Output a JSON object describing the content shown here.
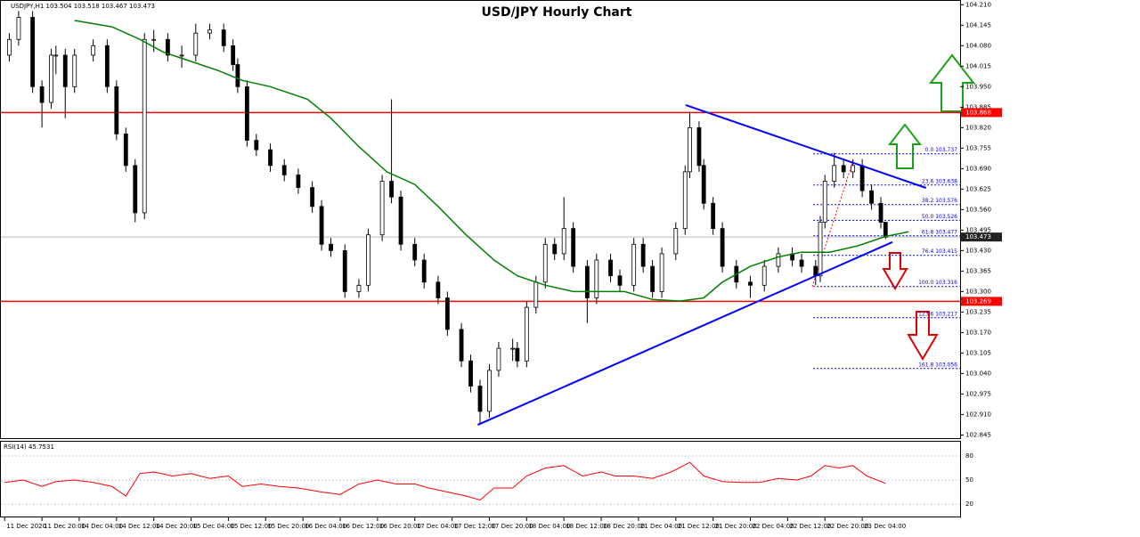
{
  "chart_data": {
    "type": "candlestick",
    "title": "USD/JPY Hourly Chart",
    "info": "USDJPY,H1  103.504 103.518 103.467 103.473",
    "x": [
      1,
      3,
      6,
      8,
      10,
      11,
      13,
      15,
      19,
      22,
      24,
      26,
      28,
      30,
      32,
      35,
      38,
      41,
      44,
      47,
      49,
      50,
      52,
      54,
      57,
      60,
      63,
      66,
      68,
      70,
      73,
      76,
      78,
      81,
      83,
      85,
      88,
      90,
      93,
      95,
      98,
      100,
      102,
      104,
      106,
      109,
      110,
      112,
      114,
      116,
      118,
      120,
      122,
      125,
      127,
      130,
      132,
      135,
      137,
      139,
      141,
      144,
      146,
      147,
      149,
      150,
      152,
      154,
      157,
      160,
      163,
      166,
      169,
      171,
      174,
      175,
      176,
      178,
      180,
      182,
      184,
      186,
      188,
      189
    ],
    "open": [
      104.05,
      104.1,
      104.17,
      103.95,
      103.9,
      104.05,
      104.05,
      103.95,
      104.05,
      104.08,
      103.95,
      103.8,
      103.7,
      103.55,
      104.1,
      104.1,
      104.05,
      104.05,
      104.12,
      104.13,
      104.08,
      104.02,
      103.95,
      103.78,
      103.75,
      103.7,
      103.67,
      103.63,
      103.57,
      103.45,
      103.43,
      103.3,
      103.32,
      103.48,
      103.65,
      103.6,
      103.45,
      103.4,
      103.33,
      103.28,
      103.18,
      103.08,
      103.0,
      102.92,
      103.05,
      103.12,
      103.12,
      103.08,
      103.25,
      103.33,
      103.45,
      103.42,
      103.5,
      103.38,
      103.28,
      103.4,
      103.35,
      103.32,
      103.45,
      103.38,
      103.3,
      103.42,
      103.5,
      103.68,
      103.82,
      103.7,
      103.58,
      103.5,
      103.38,
      103.33,
      103.32,
      103.38,
      103.42,
      103.4,
      103.38,
      103.35,
      103.52,
      103.65,
      103.7,
      103.68,
      103.7,
      103.62,
      103.58,
      103.52
    ],
    "high": [
      104.12,
      104.19,
      104.19,
      103.97,
      104.07,
      104.08,
      104.07,
      104.07,
      104.1,
      104.1,
      103.97,
      103.82,
      103.72,
      104.12,
      104.13,
      104.12,
      104.08,
      104.15,
      104.15,
      104.15,
      104.1,
      104.04,
      103.97,
      103.8,
      103.77,
      103.72,
      103.69,
      103.65,
      103.59,
      103.47,
      103.45,
      103.34,
      103.5,
      103.67,
      103.91,
      103.62,
      103.47,
      103.42,
      103.35,
      103.3,
      103.2,
      103.1,
      103.02,
      103.07,
      103.14,
      103.15,
      103.14,
      103.27,
      103.35,
      103.47,
      103.47,
      103.6,
      103.52,
      103.4,
      103.42,
      103.42,
      103.37,
      103.47,
      103.47,
      103.4,
      103.44,
      103.52,
      103.7,
      103.87,
      103.84,
      103.72,
      103.6,
      103.52,
      103.4,
      103.35,
      103.4,
      103.44,
      103.44,
      103.42,
      103.4,
      103.54,
      103.67,
      103.74,
      103.72,
      103.72,
      103.72,
      103.64,
      103.6,
      103.518
    ],
    "low": [
      104.03,
      104.08,
      103.93,
      103.82,
      103.88,
      103.99,
      103.85,
      103.93,
      104.03,
      103.93,
      103.78,
      103.68,
      103.52,
      103.53,
      104.06,
      104.03,
      104.01,
      104.03,
      104.1,
      104.06,
      104.0,
      103.93,
      103.76,
      103.73,
      103.68,
      103.65,
      103.61,
      103.55,
      103.43,
      103.41,
      103.28,
      103.28,
      103.3,
      103.46,
      103.58,
      103.43,
      103.38,
      103.31,
      103.26,
      103.16,
      103.06,
      102.98,
      102.88,
      102.9,
      103.03,
      103.08,
      103.06,
      103.06,
      103.23,
      103.31,
      103.4,
      103.4,
      103.36,
      103.2,
      103.26,
      103.33,
      103.3,
      103.3,
      103.36,
      103.28,
      103.28,
      103.4,
      103.48,
      103.66,
      103.68,
      103.56,
      103.48,
      103.36,
      103.31,
      103.28,
      103.3,
      103.36,
      103.38,
      103.36,
      103.32,
      103.33,
      103.5,
      103.63,
      103.66,
      103.66,
      103.6,
      103.56,
      103.5,
      103.467
    ],
    "close": [
      104.1,
      104.17,
      103.95,
      103.9,
      104.05,
      104.05,
      103.95,
      104.05,
      104.08,
      103.95,
      103.8,
      103.7,
      103.55,
      104.1,
      104.1,
      104.05,
      104.05,
      104.12,
      104.13,
      104.08,
      104.02,
      103.95,
      103.78,
      103.75,
      103.7,
      103.67,
      103.63,
      103.57,
      103.45,
      103.43,
      103.3,
      103.32,
      103.48,
      103.65,
      103.6,
      103.45,
      103.4,
      103.33,
      103.28,
      103.18,
      103.08,
      103.0,
      102.92,
      103.05,
      103.12,
      103.12,
      103.08,
      103.25,
      103.33,
      103.45,
      103.42,
      103.5,
      103.38,
      103.28,
      103.4,
      103.35,
      103.32,
      103.45,
      103.38,
      103.3,
      103.42,
      103.5,
      103.68,
      103.82,
      103.7,
      103.58,
      103.5,
      103.38,
      103.33,
      103.32,
      103.38,
      103.42,
      103.4,
      103.38,
      103.35,
      103.52,
      103.65,
      103.7,
      103.68,
      103.7,
      103.62,
      103.58,
      103.52,
      103.473
    ],
    "up_color": "#ffffff",
    "down_color": "#000000",
    "moving_average": {
      "color": "#008000",
      "x": [
        15,
        23,
        29,
        34,
        40,
        46,
        51,
        57,
        65,
        70,
        76,
        82,
        88,
        93,
        99,
        105,
        110,
        116,
        122,
        128,
        133,
        139,
        145,
        150,
        154,
        160,
        166,
        171,
        177,
        183,
        189,
        194
      ],
      "values": [
        104.16,
        104.14,
        104.1,
        104.06,
        104.03,
        104.0,
        103.97,
        103.95,
        103.91,
        103.85,
        103.76,
        103.68,
        103.64,
        103.57,
        103.48,
        103.4,
        103.35,
        103.32,
        103.3,
        103.3,
        103.3,
        103.275,
        103.27,
        103.28,
        103.33,
        103.38,
        103.41,
        103.425,
        103.425,
        103.445,
        103.475,
        103.49
      ]
    },
    "trendlines": [
      {
        "color": "#0000ff",
        "x": [
          101.5,
          190.5
        ],
        "values": [
          102.877,
          103.457
        ]
      },
      {
        "color": "#0000ff",
        "x": [
          146.1,
          197.7
        ],
        "values": [
          103.892,
          103.629
        ]
      }
    ],
    "levels": [
      {
        "value": 103.868,
        "color": "#ff0000"
      },
      {
        "value": 103.269,
        "color": "#ff0000"
      }
    ],
    "fibonacci": {
      "color": "#0000ff",
      "x_start": 173.5,
      "levels": [
        {
          "value": 103.737,
          "label": "0.0 103.737"
        },
        {
          "value": 103.638,
          "label": "23.6 103.638"
        },
        {
          "value": 103.576,
          "label": "38.2 103.576"
        },
        {
          "value": 103.526,
          "label": "50.0 103.526"
        },
        {
          "value": 103.477,
          "label": "61.8 103.477"
        },
        {
          "value": 103.415,
          "label": "76.4 103.415"
        },
        {
          "value": 103.316,
          "label": "100.0 103.316"
        },
        {
          "value": 103.217,
          "label": "123.6 103.217"
        },
        {
          "value": 103.056,
          "label": "161.8 103.056"
        }
      ]
    },
    "xlim": [
      -1,
      205
    ],
    "ylim": [
      102.835,
      104.225
    ],
    "yticks": [
      {
        "value": 104.21,
        "label": "104.210"
      },
      {
        "value": 104.145,
        "label": "104.145"
      },
      {
        "value": 104.08,
        "label": "104.080"
      },
      {
        "value": 104.015,
        "label": "104.015"
      },
      {
        "value": 103.95,
        "label": "103.950"
      },
      {
        "value": 103.885,
        "label": "103.885"
      },
      {
        "value": 103.82,
        "label": "103.820"
      },
      {
        "value": 103.755,
        "label": "103.755"
      },
      {
        "value": 103.69,
        "label": "103.690"
      },
      {
        "value": 103.625,
        "label": "103.625"
      },
      {
        "value": 103.56,
        "label": "103.560"
      },
      {
        "value": 103.495,
        "label": "103.495"
      },
      {
        "value": 103.43,
        "label": "103.430"
      },
      {
        "value": 103.365,
        "label": "103.365"
      },
      {
        "value": 103.3,
        "label": "103.300"
      },
      {
        "value": 103.235,
        "label": "103.235"
      },
      {
        "value": 103.17,
        "label": "103.170"
      },
      {
        "value": 103.105,
        "label": "103.105"
      },
      {
        "value": 103.04,
        "label": "103.040"
      },
      {
        "value": 102.975,
        "label": "102.975"
      },
      {
        "value": 102.91,
        "label": "102.910"
      },
      {
        "value": 102.845,
        "label": "102.845"
      }
    ],
    "xticks": [
      {
        "value": 0,
        "label": "11 Dec 2020"
      },
      {
        "value": 8,
        "label": "11 Dec 20:00"
      },
      {
        "value": 16,
        "label": "14 Dec 04:00"
      },
      {
        "value": 24,
        "label": "14 Dec 12:00"
      },
      {
        "value": 32,
        "label": "14 Dec 20:00"
      },
      {
        "value": 40,
        "label": "15 Dec 04:00"
      },
      {
        "value": 48,
        "label": "15 Dec 12:00"
      },
      {
        "value": 56,
        "label": "15 Dec 20:00"
      },
      {
        "value": 64,
        "label": "16 Dec 04:00"
      },
      {
        "value": 72,
        "label": "16 Dec 12:00"
      },
      {
        "value": 80,
        "label": "16 Dec 20:00"
      },
      {
        "value": 88,
        "label": "17 Dec 04:00"
      },
      {
        "value": 96,
        "label": "17 Dec 12:00"
      },
      {
        "value": 104,
        "label": "17 Dec 20:00"
      },
      {
        "value": 112,
        "label": "18 Dec 04:00"
      },
      {
        "value": 120,
        "label": "18 Dec 12:00"
      },
      {
        "value": 128,
        "label": "18 Dec 20:00"
      },
      {
        "value": 136,
        "label": "21 Dec 04:00"
      },
      {
        "value": 144,
        "label": "21 Dec 12:00"
      },
      {
        "value": 152,
        "label": "21 Dec 20:00"
      },
      {
        "value": 160,
        "label": "22 Dec 04:00"
      },
      {
        "value": 168,
        "label": "22 Dec 12:00"
      },
      {
        "value": 176,
        "label": "22 Dec 20:00"
      },
      {
        "value": 184,
        "label": "23 Dec 04:00"
      }
    ],
    "rsi": {
      "title": "RSI(14) 45.7531",
      "color": "#ff0000",
      "x": [
        0,
        4,
        8,
        11,
        15,
        19,
        23,
        26,
        29,
        32,
        36,
        40,
        44,
        48,
        51,
        55,
        59,
        63,
        68,
        72,
        76,
        80,
        84,
        88,
        91,
        95,
        99,
        102,
        105,
        109,
        112,
        116,
        120,
        124,
        128,
        131,
        135,
        139,
        143,
        147,
        150,
        154,
        158,
        162,
        166,
        170,
        173,
        176,
        179,
        182,
        185,
        189
      ],
      "values": [
        47,
        50,
        42,
        48,
        50,
        47,
        42,
        30,
        58,
        60,
        55,
        58,
        52,
        55,
        42,
        45,
        42,
        40,
        35,
        32,
        45,
        50,
        45,
        45,
        40,
        35,
        30,
        25,
        40,
        40,
        55,
        65,
        68,
        55,
        60,
        55,
        55,
        52,
        60,
        72,
        55,
        48,
        47,
        47,
        52,
        50,
        55,
        68,
        65,
        68,
        55,
        45.7531
      ],
      "ylim": [
        0,
        100
      ],
      "yticks": [
        80,
        50,
        20
      ]
    }
  }
}
